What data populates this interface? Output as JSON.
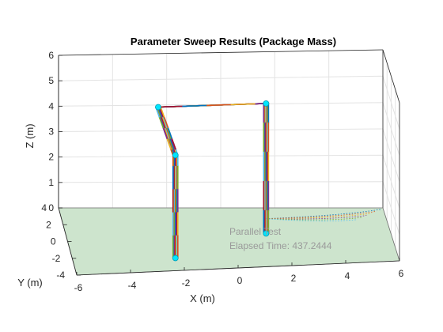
{
  "chart_data": {
    "type": "line",
    "projection": "3d",
    "title": "Parameter Sweep Results (Package Mass)",
    "xlabel": "X (m)",
    "ylabel": "Y (m)",
    "zlabel": "Z (m)",
    "xlim": [
      -6,
      6
    ],
    "ylim": [
      -4,
      4
    ],
    "zlim": [
      0,
      6
    ],
    "xticks": [
      "-6",
      "-4",
      "-2",
      "0",
      "2",
      "4",
      "6"
    ],
    "yticks": [
      "-4",
      "-2",
      "0",
      "2",
      "4"
    ],
    "zticks": [
      "0",
      "1",
      "2",
      "3",
      "4",
      "5",
      "6"
    ],
    "grid": true,
    "ground_color": "#cde4cd",
    "waypoints": [
      {
        "x": -2.2,
        "y": -2.4,
        "z": 0
      },
      {
        "x": -2.2,
        "y": -2.4,
        "z": 4
      },
      {
        "x": -2.6,
        "y": 0.5,
        "z": 5
      },
      {
        "x": 1.4,
        "y": 0.5,
        "z": 5
      },
      {
        "x": 1.4,
        "y": 0.5,
        "z": 0
      }
    ],
    "series_colors": [
      "#0072bd",
      "#d95319",
      "#edb120",
      "#7e2f8e",
      "#77ac30",
      "#4dbeee",
      "#a2142f"
    ],
    "annotations": [
      {
        "text": "Parallel Test"
      },
      {
        "text": "Elapsed Time: 437.2444"
      }
    ]
  }
}
